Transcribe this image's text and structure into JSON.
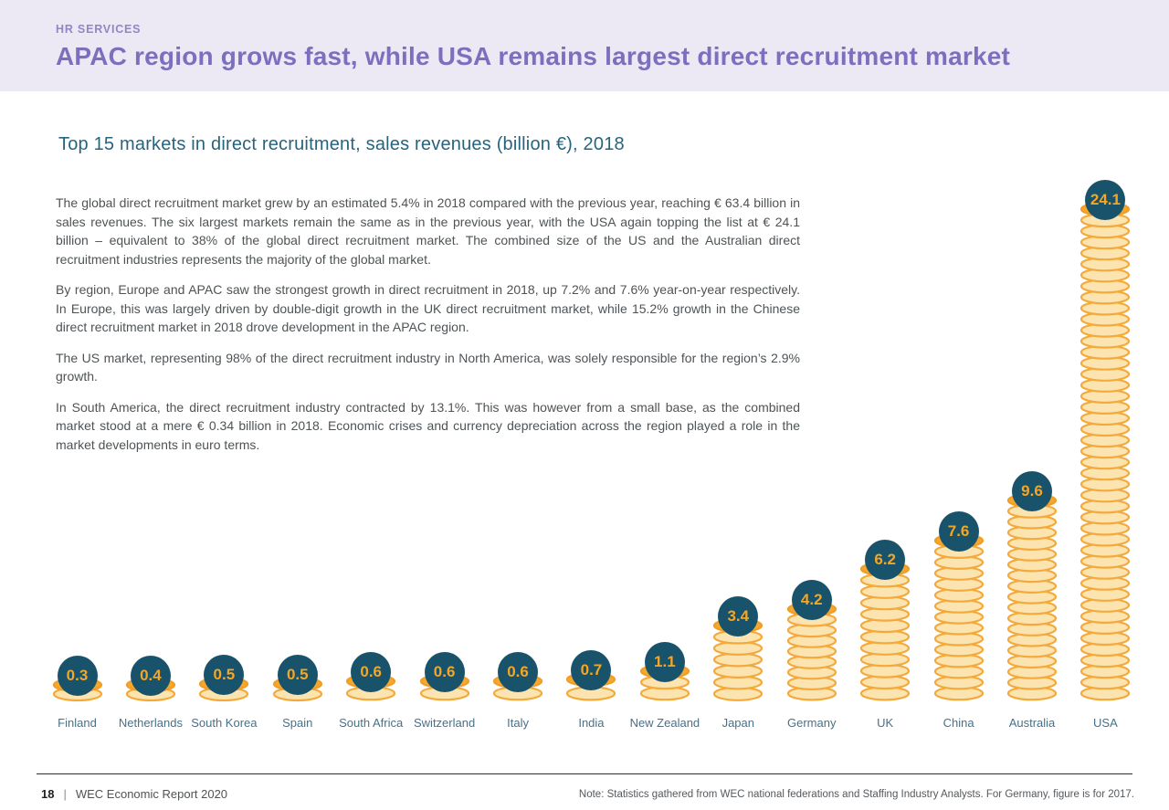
{
  "header": {
    "eyebrow": "HR SERVICES",
    "title": "APAC region grows fast, while USA remains largest direct recruitment market"
  },
  "main": {
    "chart_title": "Top 15 markets in direct recruitment, sales revenues (billion €), 2018",
    "paragraphs": [
      "The global direct recruitment market grew by an estimated 5.4% in 2018 compared with the previous year, reaching € 63.4 billion in sales revenues. The six largest markets remain the same as in the previous year, with the USA again topping the list at € 24.1 billion – equivalent to 38% of the global direct recruitment market. The combined size of the US and the Australian direct recruitment industries represents the majority of the global market.",
      "By region, Europe and APAC saw the strongest growth in direct recruitment in 2018, up 7.2% and 7.6% year-on-year respectively. In Europe, this was largely driven by double-digit growth in the UK direct recruitment market, while 15.2% growth in the Chinese direct recruitment market in 2018 drove development in the APAC region.",
      "The US market, representing 98% of the direct recruitment industry in North America, was solely responsible for the region’s 2.9% growth.",
      "In South America, the direct recruitment industry contracted by 13.1%. This was however from a small base, as the combined market stood at a mere € 0.34 billion in 2018. Economic crises and currency depreciation across the region played a role in the market developments in euro terms."
    ]
  },
  "chart_data": {
    "type": "bar",
    "style": "coin-stack-pictogram",
    "title": "Top 15 markets in direct recruitment, sales revenues (billion €), 2018",
    "unit": "billion €",
    "year": "2018",
    "categories": [
      "Finland",
      "Netherlands",
      "South Korea",
      "Spain",
      "South Africa",
      "Switzerland",
      "Italy",
      "India",
      "New Zealand",
      "Japan",
      "Germany",
      "UK",
      "China",
      "Australia",
      "USA"
    ],
    "values": [
      0.3,
      0.4,
      0.5,
      0.5,
      0.6,
      0.6,
      0.6,
      0.7,
      1.1,
      3.4,
      4.2,
      6.2,
      7.6,
      9.6,
      24.1
    ],
    "ylim": [
      0,
      24.1
    ],
    "grid": false,
    "legend": "none",
    "colors": {
      "badge_bg": "#19536b",
      "value_text": "#f5a623",
      "coin_fill": "#fce4b0",
      "coin_stroke": "#f4a93c",
      "coin_top": "#f6a72e",
      "coin_top_stroke": "#f09e25",
      "label": "#46718a"
    }
  },
  "footer": {
    "page_number": "18",
    "separator": "|",
    "report_name": "WEC Economic Report 2020",
    "note": "Note: Statistics gathered from WEC national federations and Staffing Industry Analysts. For Germany, figure is for 2017."
  }
}
